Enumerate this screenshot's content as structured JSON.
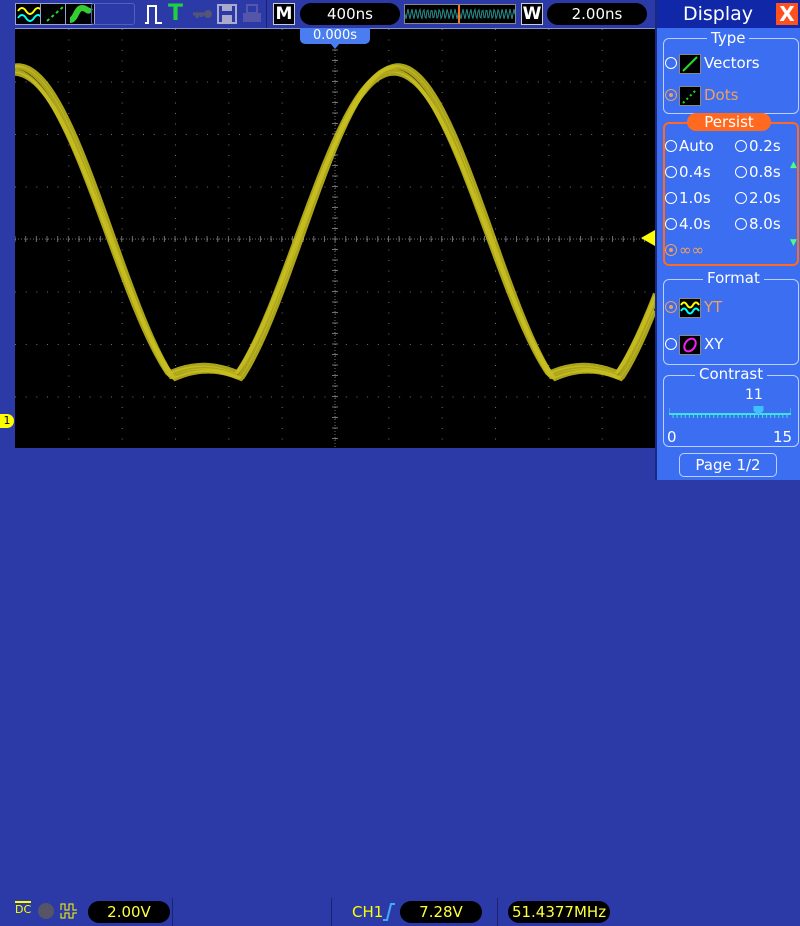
{
  "toolbar": {
    "icons": [
      "channels-wave-icon",
      "dots-display-icon",
      "persist-display-icon",
      "blank-slot",
      "pulse-icon",
      "trigger-T-icon",
      "key-icon",
      "save-disk-icon",
      "printer-icon"
    ],
    "main_badge": "M",
    "timebase": "400ns",
    "window_badge": "W",
    "window_timebase": "2.00ns"
  },
  "screen": {
    "trigger_position": "0.000s",
    "channel_marker": "1",
    "trace_color": "#c8c020",
    "grid_color": "#707070"
  },
  "bottom": {
    "coupling": "DC",
    "ch1_scale": "2.00V",
    "trigger_source": "CH1",
    "trigger_level": "7.28V",
    "frequency": "51.4377MHz"
  },
  "panel": {
    "title": "Display",
    "close": "X",
    "type": {
      "label": "Type",
      "options": [
        {
          "label": "Vectors",
          "selected": false
        },
        {
          "label": "Dots",
          "selected": true
        }
      ]
    },
    "persist": {
      "label": "Persist",
      "options": [
        "Auto",
        "0.2s",
        "0.4s",
        "0.8s",
        "1.0s",
        "2.0s",
        "4.0s",
        "8.0s",
        "∞∞"
      ],
      "selected": "∞∞"
    },
    "format": {
      "label": "Format",
      "options": [
        {
          "label": "YT",
          "selected": true
        },
        {
          "label": "XY",
          "selected": false
        }
      ]
    },
    "contrast": {
      "label": "Contrast",
      "value": "11",
      "min": "0",
      "max": "15",
      "level": 11
    },
    "page": "Page 1/2"
  },
  "colors": {
    "panel_bg": "#3b6ef0",
    "accent_orange": "#ff6a20",
    "trace_yellow": "#c8c020"
  }
}
